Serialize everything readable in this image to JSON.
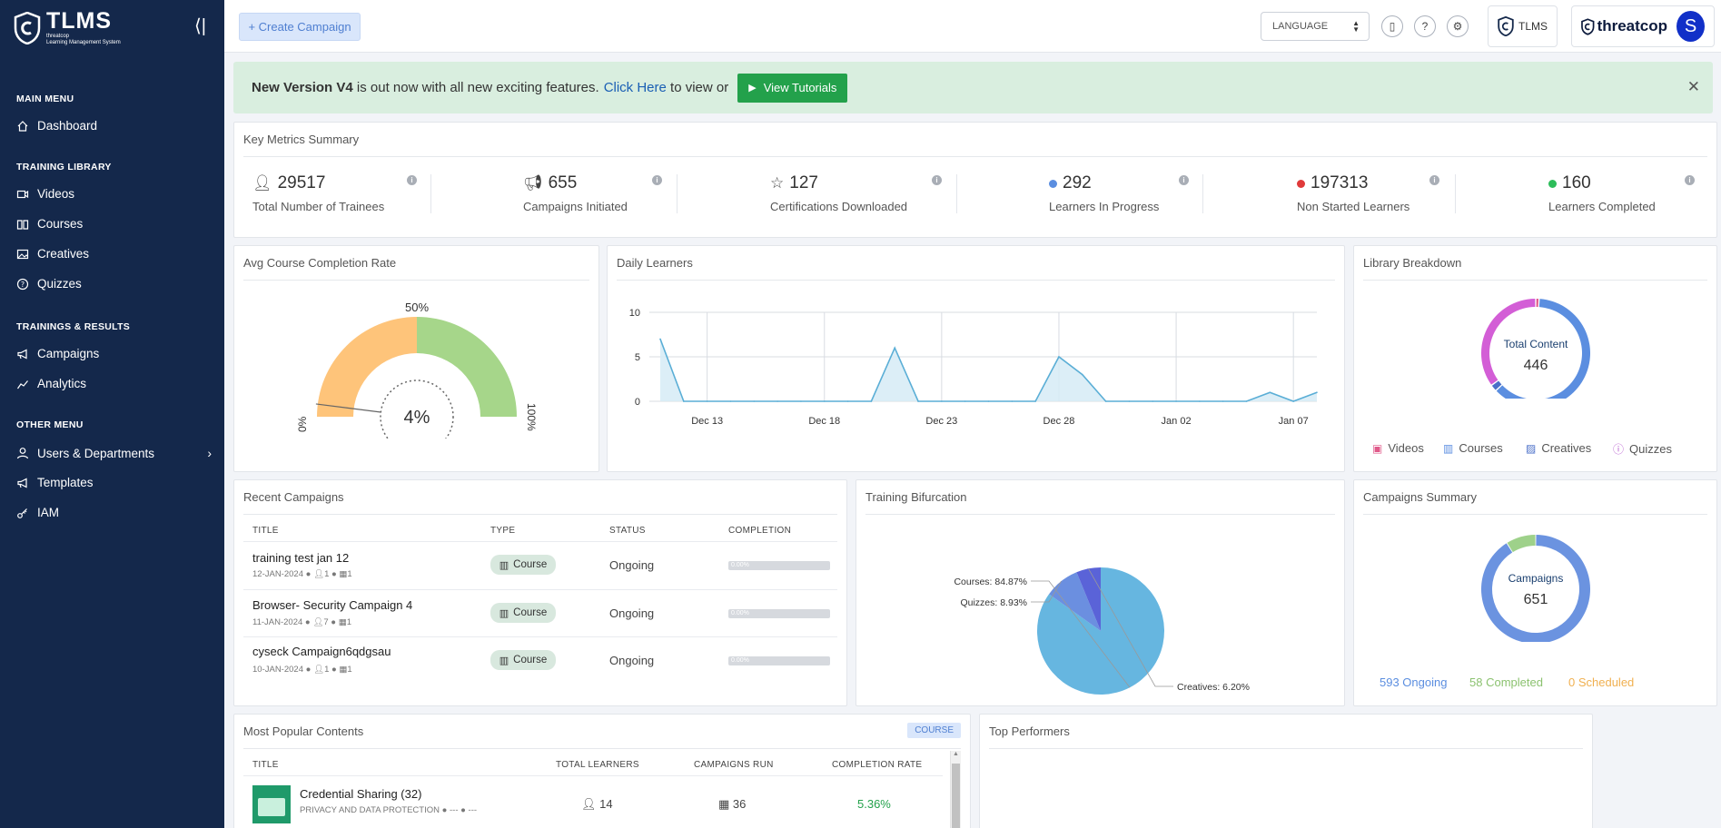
{
  "sidebar": {
    "logo_title": "TLMS",
    "logo_sub1": "threatcop",
    "logo_sub2": "Learning Management System",
    "sections": {
      "main": "MAIN MENU",
      "library": "TRAINING LIBRARY",
      "results": "TRAININGS & RESULTS",
      "other": "OTHER MENU"
    },
    "items": {
      "dashboard": "Dashboard",
      "videos": "Videos",
      "courses": "Courses",
      "creatives": "Creatives",
      "quizzes": "Quizzes",
      "campaigns": "Campaigns",
      "analytics": "Analytics",
      "users": "Users & Departments",
      "templates": "Templates",
      "iam": "IAM"
    }
  },
  "header": {
    "create_label": "+ Create Campaign",
    "language_label": "LANGUAGE",
    "brand_tlms": "TLMS",
    "brand_threatcop": "threatcop",
    "avatar_letter": "S"
  },
  "banner": {
    "bold": "New Version V4",
    "text": " is out now with all new exciting features.",
    "link": "Click Here",
    "text2": " to view or",
    "button": "View Tutorials"
  },
  "metrics": {
    "title": "Key Metrics Summary",
    "items": [
      {
        "value": "29517",
        "label": "Total Number of Trainees"
      },
      {
        "value": "655",
        "label": "Campaigns Initiated"
      },
      {
        "value": "127",
        "label": "Certifications Downloaded"
      },
      {
        "value": "292",
        "label": "Learners In Progress",
        "color": "#5b8ee0"
      },
      {
        "value": "197313",
        "label": "Non Started Learners",
        "color": "#e03a3a"
      },
      {
        "value": "160",
        "label": "Learners Completed",
        "color": "#2dbd5a"
      }
    ]
  },
  "gauge": {
    "title": "Avg Course Completion Rate",
    "value": "4%",
    "label_0": "0%",
    "label_50": "50%",
    "label_100": "100%",
    "fraction": 0.04
  },
  "chart_data": [
    {
      "type": "area",
      "title": "Daily Learners",
      "x": [
        "Dec 11",
        "Dec 12",
        "Dec 13",
        "Dec 14",
        "Dec 15",
        "Dec 16",
        "Dec 17",
        "Dec 18",
        "Dec 19",
        "Dec 20",
        "Dec 21",
        "Dec 22",
        "Dec 23",
        "Dec 24",
        "Dec 25",
        "Dec 26",
        "Dec 27",
        "Dec 28",
        "Dec 29",
        "Dec 30",
        "Dec 31",
        "Jan 01",
        "Jan 02",
        "Jan 03",
        "Jan 04",
        "Jan 05",
        "Jan 06",
        "Jan 07",
        "Jan 08"
      ],
      "values": [
        7,
        0,
        0,
        0,
        0,
        0,
        0,
        0,
        0,
        0,
        6,
        0,
        0,
        0,
        0,
        0,
        0,
        5,
        3,
        0,
        0,
        0,
        0,
        0,
        0,
        0,
        1,
        0,
        1
      ],
      "xticks": [
        "Dec 13",
        "Dec 18",
        "Dec 23",
        "Dec 28",
        "Jan 02",
        "Jan 07"
      ],
      "yticks": [
        "0",
        "5",
        "10"
      ],
      "ylim": [
        0,
        10
      ],
      "color": "#5aaed6"
    },
    {
      "type": "pie",
      "title": "Training Bifurcation",
      "slices": [
        {
          "label": "Courses: 84.87%",
          "value": 84.87,
          "color": "#66b6e0"
        },
        {
          "label": "Quizzes: 8.93%",
          "value": 8.93,
          "color": "#6b8fe0"
        },
        {
          "label": "Creatives: 6.20%",
          "value": 6.2,
          "color": "#5a63d8"
        }
      ]
    },
    {
      "type": "pie",
      "title": "Library Breakdown",
      "center_label": "Total Content",
      "center_value": "446",
      "slices": [
        {
          "label": "Videos",
          "value": 1,
          "color": "#e05a8a"
        },
        {
          "label": "Courses",
          "value": 62,
          "color": "#5b8ee0"
        },
        {
          "label": "Creatives",
          "value": 2,
          "color": "#4a6fc8"
        },
        {
          "label": "Quizzes",
          "value": 35,
          "color": "#d35ed6"
        }
      ]
    },
    {
      "type": "pie",
      "title": "Campaigns Summary",
      "center_label": "Campaigns",
      "center_value": "651",
      "slices": [
        {
          "label": "593 Ongoing",
          "value": 593,
          "color": "#6b93e0"
        },
        {
          "label": "58 Completed",
          "value": 58,
          "color": "#9ed18a"
        },
        {
          "label": "0 Scheduled",
          "value": 0,
          "color": "#f0b050"
        }
      ]
    }
  ],
  "library_legend": [
    "Videos",
    "Courses",
    "Creatives",
    "Quizzes"
  ],
  "library_legend_colors": [
    "#e05a8a",
    "#5b8ee0",
    "#4a6fc8",
    "#b85cd0"
  ],
  "campaigns_legend": [
    "593 Ongoing",
    "58 Completed",
    "0 Scheduled"
  ],
  "campaigns_legend_colors": [
    "#5b8ee0",
    "#8cc270",
    "#f0b050"
  ],
  "recent": {
    "title": "Recent Campaigns",
    "headers": [
      "TITLE",
      "TYPE",
      "STATUS",
      "COMPLETION"
    ],
    "rows": [
      {
        "title": "training test jan 12",
        "date": "12-JAN-2024",
        "users": "1",
        "count": "1",
        "type": "Course",
        "status": "Ongoing",
        "completion": "0.00%"
      },
      {
        "title": "Browser- Security Campaign 4",
        "date": "11-JAN-2024",
        "users": "7",
        "count": "1",
        "type": "Course",
        "status": "Ongoing",
        "completion": "0.00%"
      },
      {
        "title": "cyseck Campaign6qdgsau",
        "date": "10-JAN-2024",
        "users": "1",
        "count": "1",
        "type": "Course",
        "status": "Ongoing",
        "completion": "0.00%"
      }
    ]
  },
  "popular": {
    "title": "Most Popular Contents",
    "badge": "COURSE",
    "headers": [
      "TITLE",
      "TOTAL LEARNERS",
      "CAMPAIGNS RUN",
      "COMPLETION RATE"
    ],
    "rows": [
      {
        "title": "Credential Sharing (32)",
        "category": "PRIVACY AND DATA PROTECTION",
        "extra1": "---",
        "extra2": "---",
        "learners": "14",
        "campaigns": "36",
        "rate": "5.36%"
      }
    ]
  },
  "top_performers": {
    "title": "Top Performers"
  }
}
